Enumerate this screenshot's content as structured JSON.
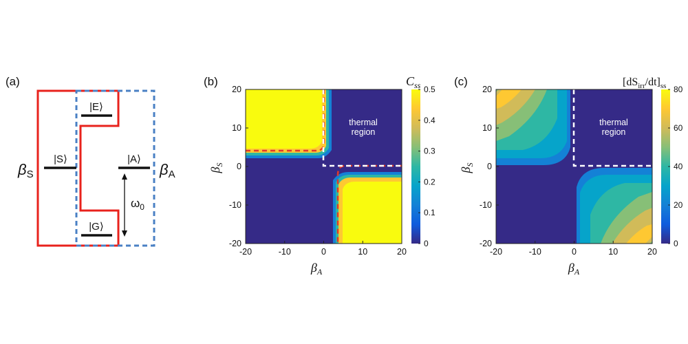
{
  "panel_a": {
    "label": "(a)",
    "beta_s": "β",
    "beta_s_sub": "S",
    "beta_a": "β",
    "beta_a_sub": "A",
    "state_e": "|E⟩",
    "state_s": "|S⟩",
    "state_g": "|G⟩",
    "state_a": "|A⟩",
    "omega": "ω",
    "omega_sub": "0",
    "colors": {
      "red_box": "#e8221c",
      "blue_box": "#4a80c4",
      "level": "#111111"
    }
  },
  "chart_data": [
    {
      "type": "heatmap",
      "panel_label": "(b)",
      "title": "C",
      "title_sub": "ss",
      "xlabel": "β",
      "xlabel_sub": "A",
      "ylabel": "β",
      "ylabel_sub": "S",
      "xlim": [
        -20,
        20
      ],
      "ylim": [
        -20,
        20
      ],
      "x_ticks": [
        -20,
        -10,
        0,
        10,
        20
      ],
      "y_ticks": [
        20,
        10,
        0,
        -10,
        -20
      ],
      "colorbar_range": [
        0,
        0.5
      ],
      "colorbar_ticks": [
        "0.5",
        "0.4",
        "0.3",
        "0.2",
        "0.1",
        "0"
      ],
      "region_label_1": "thermal",
      "region_label_2": "region",
      "description_values": {
        "max_region_value": 0.5,
        "min_region_value": 0,
        "boundary_contour_value": 0.5
      }
    },
    {
      "type": "heatmap",
      "panel_label": "(c)",
      "title": "[dS",
      "title_sub1": "irr",
      "title_mid": "/dt]",
      "title_sub2": "ss",
      "xlabel": "β",
      "xlabel_sub": "A",
      "ylabel": "β",
      "ylabel_sub": "S",
      "xlim": [
        -20,
        20
      ],
      "ylim": [
        -20,
        20
      ],
      "x_ticks": [
        -20,
        -10,
        0,
        10,
        20
      ],
      "y_ticks": [
        20,
        10,
        0,
        -10,
        -20
      ],
      "colorbar_range": [
        0,
        80
      ],
      "colorbar_ticks": [
        "80",
        "60",
        "40",
        "20",
        "0"
      ],
      "region_label_1": "thermal",
      "region_label_2": "region"
    }
  ],
  "colormap": [
    "#352a87",
    "#0f5cdd",
    "#1481d6",
    "#06a4ca",
    "#2eb7a4",
    "#87bf77",
    "#d1bb59",
    "#fec832",
    "#f9fb0e"
  ]
}
